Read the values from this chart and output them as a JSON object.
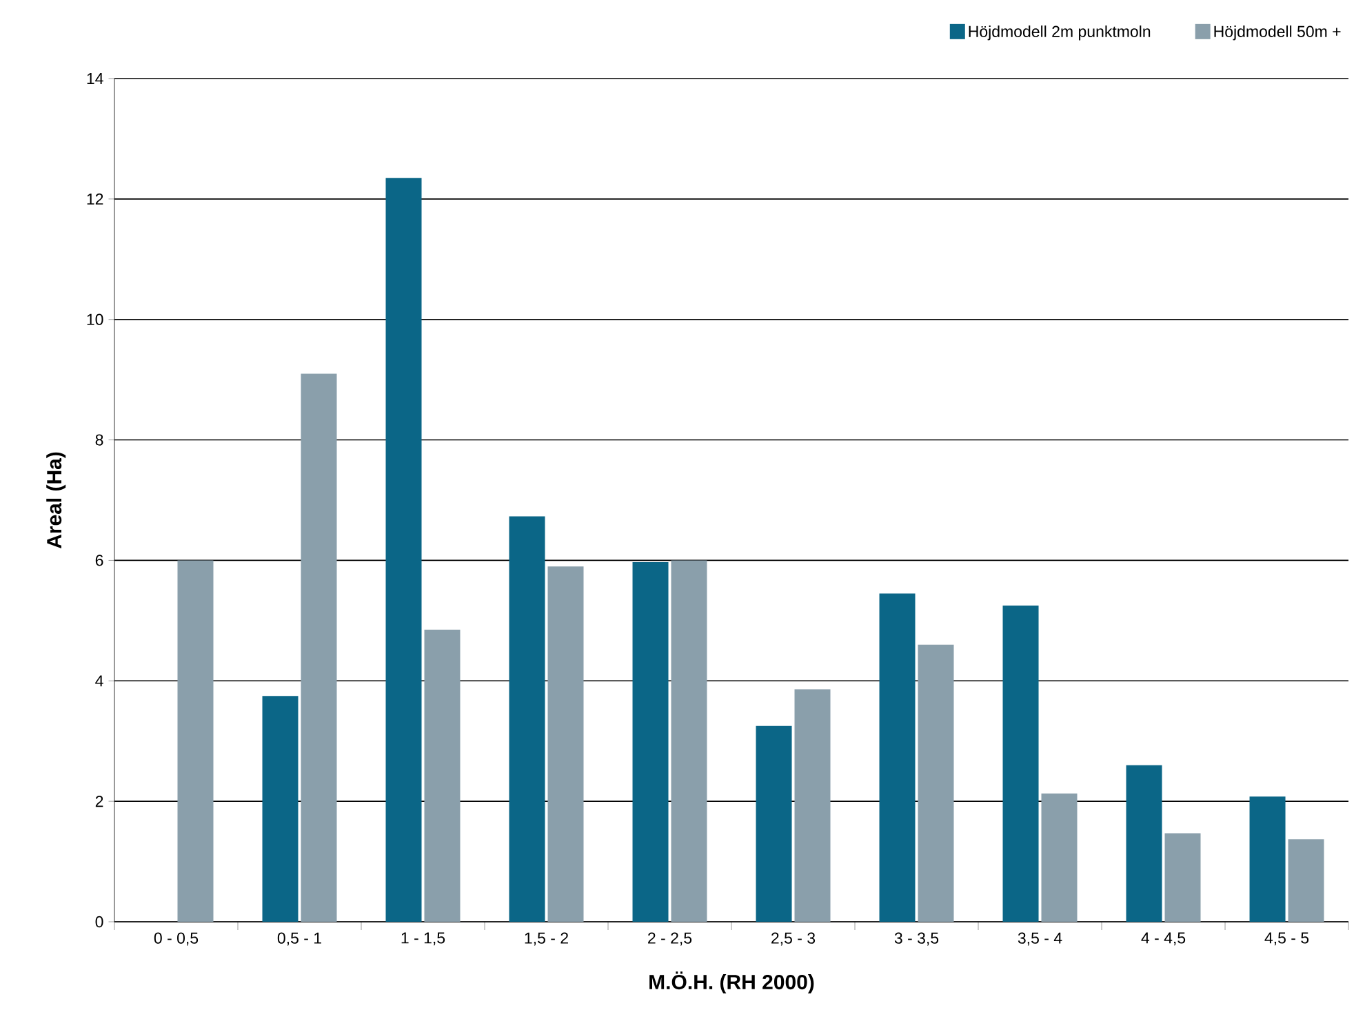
{
  "chart_data": {
    "type": "bar",
    "xlabel": "M.Ö.H. (RH 2000)",
    "ylabel": "Areal (Ha)",
    "categories": [
      "0 - 0,5",
      "0,5 - 1",
      "1 - 1,5",
      "1,5 - 2",
      "2 - 2,5",
      "2,5 - 3",
      "3 - 3,5",
      "3,5 - 4",
      "4 - 4,5",
      "4,5 - 5"
    ],
    "series": [
      {
        "name": "Höjdmodell 2m punktmoln",
        "color": "#0b6687",
        "values": [
          0,
          3.75,
          12.35,
          6.73,
          5.97,
          3.25,
          5.45,
          5.25,
          2.6,
          2.08
        ]
      },
      {
        "name": "Höjdmodell 50m +",
        "color": "#8a9fab",
        "values": [
          6.0,
          9.1,
          4.85,
          5.9,
          6.0,
          3.86,
          4.6,
          2.13,
          1.47,
          1.37
        ]
      }
    ],
    "ylim": [
      0,
      14
    ],
    "yticks": [
      0,
      2,
      4,
      6,
      8,
      10,
      12,
      14
    ],
    "grid": "y",
    "legend": "top right"
  }
}
